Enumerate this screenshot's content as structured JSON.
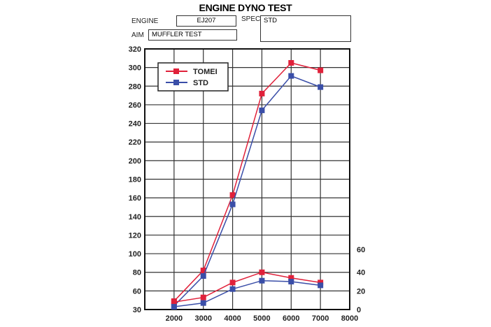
{
  "header": {
    "title": "ENGINE DYNO TEST",
    "engine_label": "ENGINE",
    "engine_value": "EJ207",
    "spec_label": "SPEC",
    "spec_value": "STD",
    "aim_label": "AIM",
    "aim_value": "MUFFLER TEST"
  },
  "chart_data": {
    "type": "line",
    "title": "ENGINE DYNO TEST",
    "xlabel": "",
    "ylabel": "",
    "x": [
      2000,
      3000,
      4000,
      5000,
      6000,
      7000
    ],
    "x_ticks": [
      "2000",
      "3000",
      "4000",
      "5000",
      "6000",
      "7000",
      "8000"
    ],
    "xlim": [
      1000,
      8000
    ],
    "y_left_ticks": [
      "320",
      "300",
      "280",
      "260",
      "240",
      "220",
      "200",
      "180",
      "160",
      "140",
      "120",
      "100",
      "80",
      "60",
      "30"
    ],
    "y_left_range": [
      40,
      320
    ],
    "y_right_ticks": [
      "60",
      "40",
      "20",
      "0"
    ],
    "y_right_range": [
      0,
      60
    ],
    "grid": true,
    "legend_position": "top-left",
    "legend": [
      "TOMEI",
      "STD"
    ],
    "colors": {
      "TOMEI": "#e0213a",
      "STD": "#3a4ea8"
    },
    "series": [
      {
        "name": "TOMEI",
        "axis": "left",
        "values": [
          49,
          82,
          163,
          272,
          305,
          297
        ]
      },
      {
        "name": "STD",
        "axis": "left",
        "values": [
          44,
          76,
          153,
          254,
          291,
          279
        ]
      },
      {
        "name": "TOMEI",
        "axis": "right",
        "values": [
          8,
          13,
          29,
          40,
          34,
          29
        ]
      },
      {
        "name": "STD",
        "axis": "right",
        "values": [
          3,
          7,
          22,
          31,
          30,
          26
        ]
      }
    ]
  }
}
